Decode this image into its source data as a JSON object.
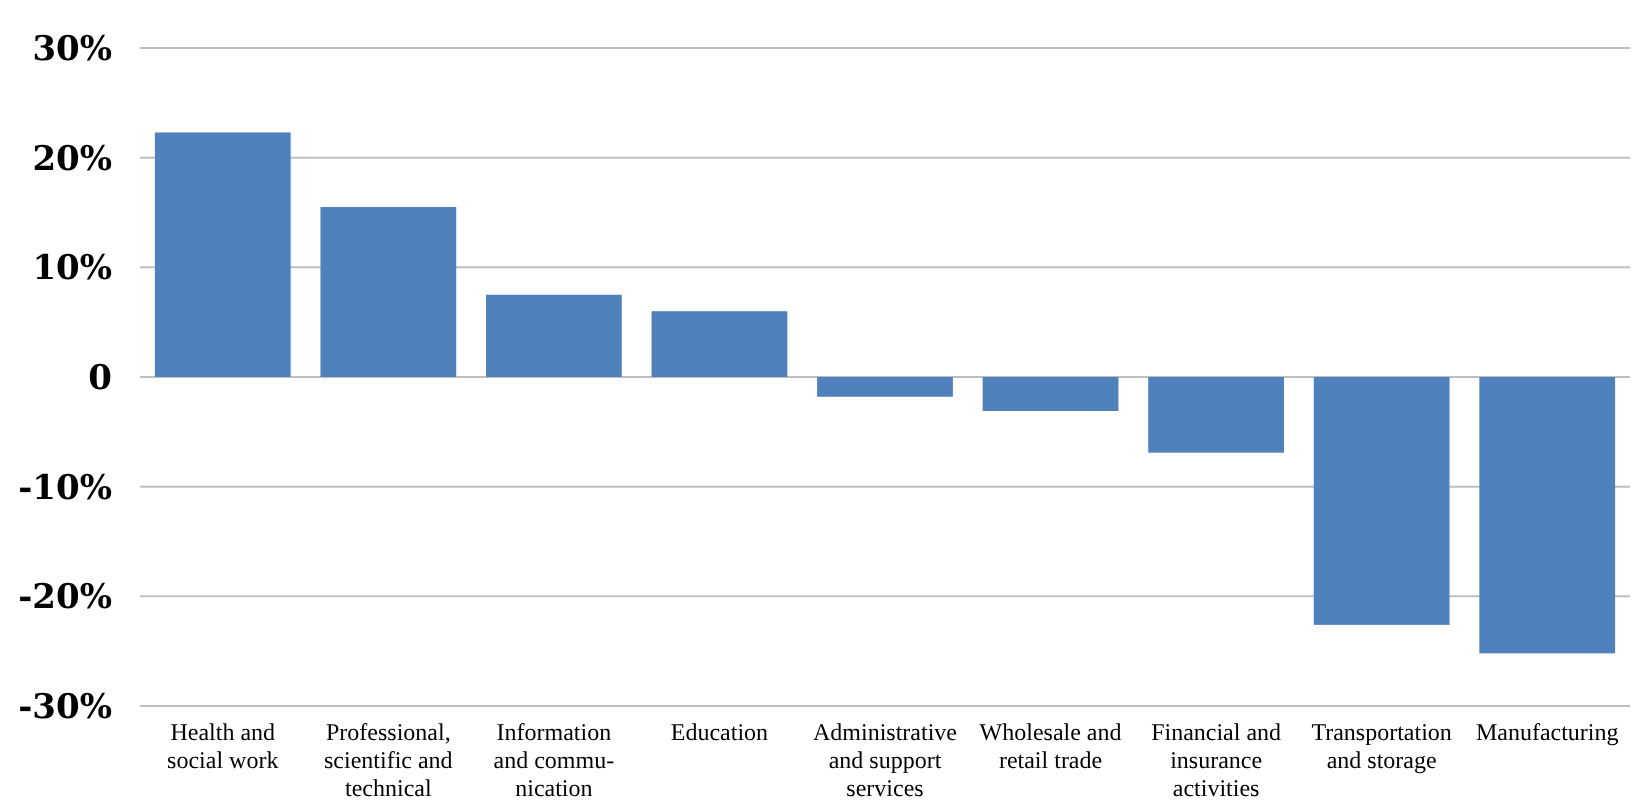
{
  "chart_data": {
    "type": "bar",
    "categories": [
      "Health and\nsocial work",
      "Professional,\nscientific and\ntechnical",
      "Information\nand commu-\nnication",
      "Education",
      "Administrative\nand support\nservices",
      "Wholesale and\nretail trade",
      "Financial and\ninsurance\nactivities",
      "Transportation\nand storage",
      "Manufacturing"
    ],
    "values": [
      22.3,
      15.5,
      7.5,
      6.0,
      -1.8,
      -3.1,
      -6.9,
      -22.6,
      -25.2
    ],
    "color": "#4f81bd",
    "ylim": [
      -30,
      30
    ],
    "yticks": [
      {
        "value": 30,
        "label": "30%"
      },
      {
        "value": 20,
        "label": "20%"
      },
      {
        "value": 10,
        "label": "10%"
      },
      0,
      {
        "value": -10,
        "label": "-10%"
      },
      {
        "value": -20,
        "label": "-20%"
      },
      {
        "value": -30,
        "label": "-30%"
      }
    ],
    "grid": "y"
  }
}
